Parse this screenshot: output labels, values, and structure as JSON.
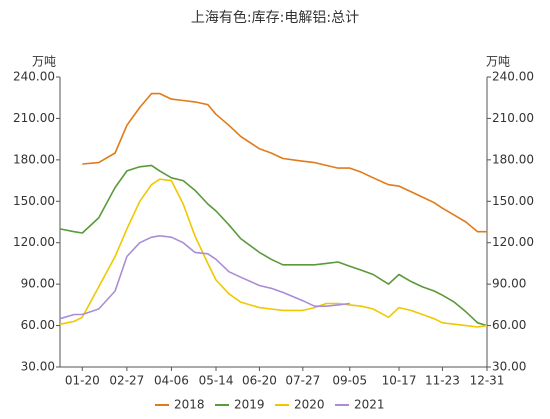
{
  "chart_data": {
    "type": "line",
    "title": "上海有色:库存:电解铝:总计",
    "ylabel": "万吨",
    "y2label": "万吨",
    "x": [
      "01-01",
      "01-13",
      "01-20",
      "02-03",
      "02-17",
      "02-27",
      "03-10",
      "03-20",
      "03-27",
      "04-06",
      "04-16",
      "04-26",
      "05-07",
      "05-14",
      "05-25",
      "06-04",
      "06-20",
      "06-30",
      "07-10",
      "07-27",
      "08-06",
      "08-16",
      "08-26",
      "09-05",
      "09-15",
      "09-25",
      "10-08",
      "10-17",
      "10-27",
      "11-06",
      "11-16",
      "11-23",
      "12-03",
      "12-13",
      "12-23",
      "12-31"
    ],
    "xticks": [
      "01-20",
      "02-27",
      "04-06",
      "05-14",
      "06-20",
      "07-27",
      "09-05",
      "10-17",
      "11-23",
      "12-31"
    ],
    "ylim": [
      30,
      240
    ],
    "yticks": [
      {
        "value": 30,
        "label": "30.00"
      },
      {
        "value": 60,
        "label": "60.00"
      },
      {
        "value": 90,
        "label": "90.00"
      },
      {
        "value": 120,
        "label": "120.00"
      },
      {
        "value": 150,
        "label": "150.00"
      },
      {
        "value": 180,
        "label": "180.00"
      },
      {
        "value": 210,
        "label": "210.00"
      },
      {
        "value": 240,
        "label": "240.00"
      }
    ],
    "y2lim": [
      30,
      240
    ],
    "y2ticks": [
      {
        "value": 30,
        "label": "30.00"
      },
      {
        "value": 60,
        "label": "60.00"
      },
      {
        "value": 90,
        "label": "90.00"
      },
      {
        "value": 120,
        "label": "120.00"
      },
      {
        "value": 150,
        "label": "150.00"
      },
      {
        "value": 180,
        "label": "180.00"
      },
      {
        "value": 210,
        "label": "210.00"
      },
      {
        "value": 240,
        "label": "240.00"
      }
    ],
    "legend": "bottom",
    "series": [
      {
        "name": "2018",
        "color": "#e07b1a",
        "values": [
          null,
          null,
          177,
          178,
          185,
          205,
          218,
          228,
          228,
          224,
          223,
          222,
          220,
          213,
          205,
          197,
          188,
          185,
          181,
          179,
          178,
          176,
          174,
          174,
          171,
          167,
          162,
          161,
          157,
          153,
          149,
          145,
          140,
          135,
          128,
          128
        ]
      },
      {
        "name": "2019",
        "color": "#5a9a3a",
        "values": [
          130,
          128,
          127,
          138,
          160,
          172,
          175,
          176,
          172,
          167,
          165,
          158,
          148,
          143,
          133,
          123,
          113,
          108,
          104,
          104,
          104,
          105,
          106,
          103,
          100,
          97,
          90,
          97,
          92,
          88,
          85,
          82,
          77,
          70,
          62,
          60
        ]
      },
      {
        "name": "2020",
        "color": "#f0c800",
        "values": [
          61,
          63,
          66,
          88,
          110,
          130,
          150,
          162,
          166,
          165,
          148,
          125,
          105,
          93,
          83,
          77,
          73,
          72,
          71,
          71,
          73,
          76,
          76,
          75,
          74,
          72,
          66,
          73,
          71,
          68,
          65,
          62,
          61,
          60,
          59,
          60
        ]
      },
      {
        "name": "2021",
        "color": "#a98ed6",
        "values": [
          65,
          68,
          68,
          72,
          85,
          110,
          120,
          124,
          125,
          124,
          120,
          113,
          112,
          108,
          99,
          95,
          89,
          87,
          84,
          78,
          74,
          74,
          75,
          76,
          null,
          null,
          null,
          null,
          null,
          null,
          null,
          null,
          null,
          null,
          null,
          null
        ]
      }
    ]
  }
}
